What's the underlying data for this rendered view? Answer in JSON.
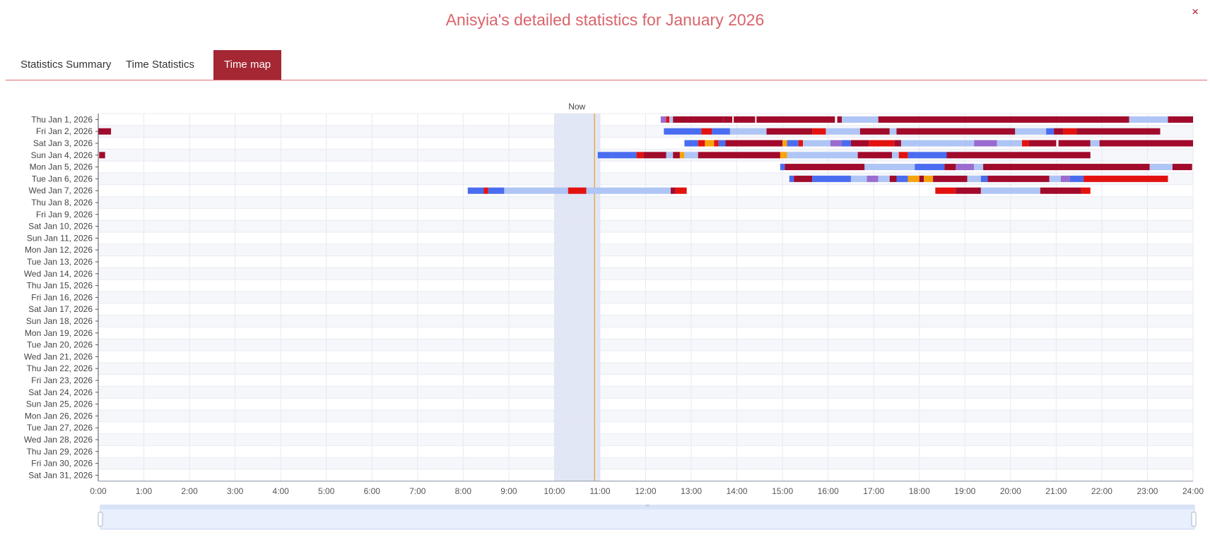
{
  "header": {
    "title": "Anisyia's detailed statistics for January 2026",
    "close_symbol": "×"
  },
  "tabs": [
    {
      "label": "Statistics Summary",
      "active": false
    },
    {
      "label": "Time Statistics",
      "active": false
    },
    {
      "label": "Time map",
      "active": true
    }
  ],
  "chart_data": {
    "type": "timeline",
    "days": [
      "Thu Jan 1, 2026",
      "Fri Jan 2, 2026",
      "Sat Jan 3, 2026",
      "Sun Jan 4, 2026",
      "Mon Jan 5, 2026",
      "Tue Jan 6, 2026",
      "Wed Jan 7, 2026",
      "Thu Jan 8, 2026",
      "Fri Jan 9, 2026",
      "Sat Jan 10, 2026",
      "Sun Jan 11, 2026",
      "Mon Jan 12, 2026",
      "Tue Jan 13, 2026",
      "Wed Jan 14, 2026",
      "Thu Jan 15, 2026",
      "Fri Jan 16, 2026",
      "Sat Jan 17, 2026",
      "Sun Jan 18, 2026",
      "Mon Jan 19, 2026",
      "Tue Jan 20, 2026",
      "Wed Jan 21, 2026",
      "Thu Jan 22, 2026",
      "Fri Jan 23, 2026",
      "Sat Jan 24, 2026",
      "Sun Jan 25, 2026",
      "Mon Jan 26, 2026",
      "Tue Jan 27, 2026",
      "Wed Jan 28, 2026",
      "Thu Jan 29, 2026",
      "Fri Jan 30, 2026",
      "Sat Jan 31, 2026"
    ],
    "x_ticks": [
      "0:00",
      "1:00",
      "2:00",
      "3:00",
      "4:00",
      "5:00",
      "6:00",
      "7:00",
      "8:00",
      "9:00",
      "10:00",
      "11:00",
      "12:00",
      "13:00",
      "14:00",
      "15:00",
      "16:00",
      "17:00",
      "18:00",
      "19:00",
      "20:00",
      "21:00",
      "22:00",
      "23:00",
      "24:00"
    ],
    "x_range_hours": [
      0,
      24
    ],
    "now_label": "Now",
    "now_hour": 10.88,
    "now_band_hours": [
      10.0,
      11.0
    ],
    "grid": true,
    "colors": {
      "d": "#a10a2b",
      "r": "#e3120f",
      "b": "#4a6cf0",
      "l": "#aec5f5",
      "p": "#9b6ccf",
      "o": "#f5a40c",
      "now_line": "#e8a33a",
      "now_band": "#dfe4f4"
    },
    "segments": [
      {
        "day": 0,
        "start": 12.33,
        "end": 12.45,
        "c": "p"
      },
      {
        "day": 0,
        "start": 12.45,
        "end": 12.52,
        "c": "r"
      },
      {
        "day": 0,
        "start": 12.52,
        "end": 12.6,
        "c": "l"
      },
      {
        "day": 0,
        "start": 12.6,
        "end": 13.7,
        "c": "d"
      },
      {
        "day": 0,
        "start": 13.7,
        "end": 13.9,
        "c": "d"
      },
      {
        "day": 0,
        "start": 13.93,
        "end": 14.4,
        "c": "d"
      },
      {
        "day": 0,
        "start": 14.43,
        "end": 16.15,
        "c": "d"
      },
      {
        "day": 0,
        "start": 16.2,
        "end": 16.3,
        "c": "d"
      },
      {
        "day": 0,
        "start": 16.3,
        "end": 17.1,
        "c": "l"
      },
      {
        "day": 0,
        "start": 17.1,
        "end": 22.6,
        "c": "d"
      },
      {
        "day": 0,
        "start": 22.6,
        "end": 23.45,
        "c": "l"
      },
      {
        "day": 0,
        "start": 23.45,
        "end": 24.0,
        "c": "d"
      },
      {
        "day": 1,
        "start": 0.0,
        "end": 0.28,
        "c": "d"
      },
      {
        "day": 1,
        "start": 12.4,
        "end": 13.22,
        "c": "b"
      },
      {
        "day": 1,
        "start": 13.22,
        "end": 13.45,
        "c": "r"
      },
      {
        "day": 1,
        "start": 13.45,
        "end": 13.85,
        "c": "b"
      },
      {
        "day": 1,
        "start": 13.85,
        "end": 14.65,
        "c": "l"
      },
      {
        "day": 1,
        "start": 14.65,
        "end": 15.65,
        "c": "d"
      },
      {
        "day": 1,
        "start": 15.65,
        "end": 15.95,
        "c": "r"
      },
      {
        "day": 1,
        "start": 15.95,
        "end": 16.7,
        "c": "l"
      },
      {
        "day": 1,
        "start": 16.7,
        "end": 17.35,
        "c": "d"
      },
      {
        "day": 1,
        "start": 17.35,
        "end": 17.5,
        "c": "l"
      },
      {
        "day": 1,
        "start": 17.5,
        "end": 20.1,
        "c": "d"
      },
      {
        "day": 1,
        "start": 20.1,
        "end": 20.78,
        "c": "l"
      },
      {
        "day": 1,
        "start": 20.78,
        "end": 20.95,
        "c": "b"
      },
      {
        "day": 1,
        "start": 20.95,
        "end": 21.15,
        "c": "d"
      },
      {
        "day": 1,
        "start": 21.15,
        "end": 21.45,
        "c": "r"
      },
      {
        "day": 1,
        "start": 21.45,
        "end": 23.28,
        "c": "d"
      },
      {
        "day": 2,
        "start": 12.85,
        "end": 13.15,
        "c": "b"
      },
      {
        "day": 2,
        "start": 13.15,
        "end": 13.3,
        "c": "r"
      },
      {
        "day": 2,
        "start": 13.3,
        "end": 13.5,
        "c": "o"
      },
      {
        "day": 2,
        "start": 13.5,
        "end": 13.6,
        "c": "r"
      },
      {
        "day": 2,
        "start": 13.6,
        "end": 13.75,
        "c": "b"
      },
      {
        "day": 2,
        "start": 13.75,
        "end": 15.0,
        "c": "d"
      },
      {
        "day": 2,
        "start": 15.0,
        "end": 15.1,
        "c": "o"
      },
      {
        "day": 2,
        "start": 15.1,
        "end": 15.35,
        "c": "b"
      },
      {
        "day": 2,
        "start": 15.35,
        "end": 15.45,
        "c": "r"
      },
      {
        "day": 2,
        "start": 15.45,
        "end": 16.05,
        "c": "l"
      },
      {
        "day": 2,
        "start": 16.05,
        "end": 16.3,
        "c": "p"
      },
      {
        "day": 2,
        "start": 16.3,
        "end": 16.5,
        "c": "b"
      },
      {
        "day": 2,
        "start": 16.5,
        "end": 16.9,
        "c": "d"
      },
      {
        "day": 2,
        "start": 16.9,
        "end": 17.45,
        "c": "r"
      },
      {
        "day": 2,
        "start": 17.45,
        "end": 17.6,
        "c": "d"
      },
      {
        "day": 2,
        "start": 17.6,
        "end": 19.2,
        "c": "l"
      },
      {
        "day": 2,
        "start": 19.2,
        "end": 19.7,
        "c": "p"
      },
      {
        "day": 2,
        "start": 19.7,
        "end": 20.25,
        "c": "l"
      },
      {
        "day": 2,
        "start": 20.25,
        "end": 20.4,
        "c": "r"
      },
      {
        "day": 2,
        "start": 20.4,
        "end": 21.0,
        "c": "d"
      },
      {
        "day": 2,
        "start": 21.05,
        "end": 21.75,
        "c": "d"
      },
      {
        "day": 2,
        "start": 21.75,
        "end": 21.95,
        "c": "l"
      },
      {
        "day": 2,
        "start": 21.95,
        "end": 24.0,
        "c": "d"
      },
      {
        "day": 3,
        "start": 0.02,
        "end": 0.15,
        "c": "d"
      },
      {
        "day": 3,
        "start": 10.95,
        "end": 11.25,
        "c": "b"
      },
      {
        "day": 3,
        "start": 11.25,
        "end": 11.8,
        "c": "b"
      },
      {
        "day": 3,
        "start": 11.8,
        "end": 11.95,
        "c": "r"
      },
      {
        "day": 3,
        "start": 11.95,
        "end": 12.45,
        "c": "d"
      },
      {
        "day": 3,
        "start": 12.45,
        "end": 12.6,
        "c": "l"
      },
      {
        "day": 3,
        "start": 12.6,
        "end": 12.75,
        "c": "d"
      },
      {
        "day": 3,
        "start": 12.75,
        "end": 12.85,
        "c": "o"
      },
      {
        "day": 3,
        "start": 12.85,
        "end": 13.15,
        "c": "l"
      },
      {
        "day": 3,
        "start": 13.15,
        "end": 14.95,
        "c": "d"
      },
      {
        "day": 3,
        "start": 14.95,
        "end": 15.1,
        "c": "o"
      },
      {
        "day": 3,
        "start": 15.1,
        "end": 15.25,
        "c": "l"
      },
      {
        "day": 3,
        "start": 15.25,
        "end": 16.65,
        "c": "l"
      },
      {
        "day": 3,
        "start": 16.65,
        "end": 17.4,
        "c": "d"
      },
      {
        "day": 3,
        "start": 17.4,
        "end": 17.55,
        "c": "l"
      },
      {
        "day": 3,
        "start": 17.55,
        "end": 17.75,
        "c": "r"
      },
      {
        "day": 3,
        "start": 17.75,
        "end": 18.6,
        "c": "b"
      },
      {
        "day": 3,
        "start": 18.6,
        "end": 21.75,
        "c": "d"
      },
      {
        "day": 4,
        "start": 14.95,
        "end": 15.05,
        "c": "b"
      },
      {
        "day": 4,
        "start": 15.05,
        "end": 16.8,
        "c": "d"
      },
      {
        "day": 4,
        "start": 16.8,
        "end": 17.9,
        "c": "l"
      },
      {
        "day": 4,
        "start": 17.9,
        "end": 18.55,
        "c": "b"
      },
      {
        "day": 4,
        "start": 18.55,
        "end": 18.8,
        "c": "d"
      },
      {
        "day": 4,
        "start": 18.8,
        "end": 19.2,
        "c": "p"
      },
      {
        "day": 4,
        "start": 19.2,
        "end": 19.4,
        "c": "l"
      },
      {
        "day": 4,
        "start": 19.4,
        "end": 19.5,
        "c": "d"
      },
      {
        "day": 4,
        "start": 19.5,
        "end": 23.05,
        "c": "d"
      },
      {
        "day": 4,
        "start": 23.05,
        "end": 23.55,
        "c": "l"
      },
      {
        "day": 4,
        "start": 23.55,
        "end": 23.98,
        "c": "d"
      },
      {
        "day": 5,
        "start": 15.15,
        "end": 15.25,
        "c": "b"
      },
      {
        "day": 5,
        "start": 15.25,
        "end": 15.65,
        "c": "d"
      },
      {
        "day": 5,
        "start": 15.65,
        "end": 16.5,
        "c": "b"
      },
      {
        "day": 5,
        "start": 16.5,
        "end": 16.85,
        "c": "l"
      },
      {
        "day": 5,
        "start": 16.85,
        "end": 17.1,
        "c": "p"
      },
      {
        "day": 5,
        "start": 17.1,
        "end": 17.35,
        "c": "l"
      },
      {
        "day": 5,
        "start": 17.35,
        "end": 17.5,
        "c": "d"
      },
      {
        "day": 5,
        "start": 17.5,
        "end": 17.75,
        "c": "b"
      },
      {
        "day": 5,
        "start": 17.75,
        "end": 18.0,
        "c": "o"
      },
      {
        "day": 5,
        "start": 18.0,
        "end": 18.1,
        "c": "d"
      },
      {
        "day": 5,
        "start": 18.1,
        "end": 18.3,
        "c": "o"
      },
      {
        "day": 5,
        "start": 18.3,
        "end": 19.05,
        "c": "d"
      },
      {
        "day": 5,
        "start": 19.05,
        "end": 19.35,
        "c": "l"
      },
      {
        "day": 5,
        "start": 19.35,
        "end": 19.5,
        "c": "b"
      },
      {
        "day": 5,
        "start": 19.5,
        "end": 20.85,
        "c": "d"
      },
      {
        "day": 5,
        "start": 20.85,
        "end": 21.1,
        "c": "l"
      },
      {
        "day": 5,
        "start": 21.1,
        "end": 21.3,
        "c": "p"
      },
      {
        "day": 5,
        "start": 21.3,
        "end": 21.6,
        "c": "b"
      },
      {
        "day": 5,
        "start": 21.6,
        "end": 23.45,
        "c": "r"
      },
      {
        "day": 6,
        "start": 8.1,
        "end": 8.45,
        "c": "b"
      },
      {
        "day": 6,
        "start": 8.45,
        "end": 8.55,
        "c": "r"
      },
      {
        "day": 6,
        "start": 8.55,
        "end": 8.9,
        "c": "b"
      },
      {
        "day": 6,
        "start": 8.9,
        "end": 10.3,
        "c": "l"
      },
      {
        "day": 6,
        "start": 10.3,
        "end": 10.7,
        "c": "r"
      },
      {
        "day": 6,
        "start": 10.7,
        "end": 12.55,
        "c": "l"
      },
      {
        "day": 6,
        "start": 12.55,
        "end": 12.65,
        "c": "d"
      },
      {
        "day": 6,
        "start": 12.65,
        "end": 12.9,
        "c": "r"
      },
      {
        "day": 6,
        "start": 18.35,
        "end": 18.8,
        "c": "r"
      },
      {
        "day": 6,
        "start": 18.8,
        "end": 19.35,
        "c": "d"
      },
      {
        "day": 6,
        "start": 19.35,
        "end": 20.65,
        "c": "l"
      },
      {
        "day": 6,
        "start": 20.65,
        "end": 21.55,
        "c": "d"
      },
      {
        "day": 6,
        "start": 21.55,
        "end": 21.75,
        "c": "r"
      }
    ]
  }
}
